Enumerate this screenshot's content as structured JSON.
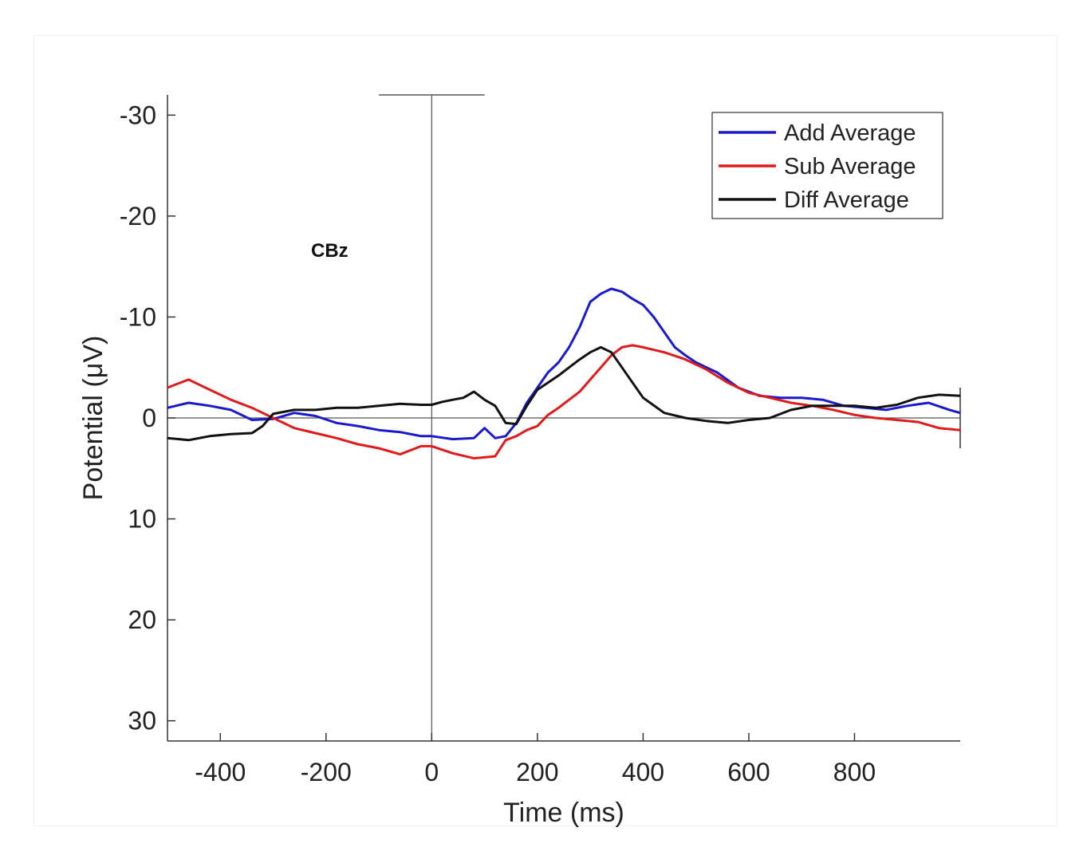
{
  "chart_data": {
    "type": "line",
    "xlabel": "Time (ms)",
    "ylabel": "Potential (μV)",
    "xlim": [
      -500,
      1000
    ],
    "ylim": [
      -32,
      32
    ],
    "y_reversed": true,
    "x_ticks": [
      -400,
      -200,
      0,
      200,
      400,
      600,
      800
    ],
    "y_ticks": [
      -30,
      -20,
      -10,
      0,
      10,
      20,
      30
    ],
    "y_tick_labels": [
      "-30",
      "-20",
      "-10",
      "0",
      "10",
      "20",
      "30"
    ],
    "annotation": "CBz",
    "legend_position": "top-right",
    "reference_lines": {
      "zero_time": 0,
      "zero_potential": 0
    },
    "series": [
      {
        "name": "Add Average",
        "color": "#1a1acc",
        "x": [
          -500,
          -460,
          -420,
          -380,
          -340,
          -300,
          -260,
          -220,
          -180,
          -140,
          -100,
          -60,
          -20,
          0,
          40,
          80,
          100,
          120,
          140,
          160,
          180,
          200,
          220,
          240,
          260,
          280,
          300,
          320,
          340,
          360,
          380,
          400,
          420,
          440,
          460,
          480,
          500,
          540,
          580,
          620,
          660,
          700,
          740,
          780,
          820,
          860,
          900,
          940,
          980,
          1000
        ],
        "y": [
          -1.0,
          -1.5,
          -1.2,
          -0.8,
          0.2,
          0.1,
          -0.5,
          -0.2,
          0.5,
          0.8,
          1.2,
          1.4,
          1.8,
          1.8,
          2.1,
          2.0,
          1.0,
          2.0,
          1.8,
          0.5,
          -1.5,
          -3.0,
          -4.5,
          -5.5,
          -7.0,
          -9.0,
          -11.5,
          -12.3,
          -12.8,
          -12.5,
          -11.8,
          -11.2,
          -10.0,
          -8.5,
          -7.0,
          -6.2,
          -5.5,
          -4.5,
          -3.0,
          -2.2,
          -2.0,
          -2.0,
          -1.8,
          -1.2,
          -1.0,
          -0.8,
          -1.2,
          -1.5,
          -0.8,
          -0.5
        ]
      },
      {
        "name": "Sub Average",
        "color": "#e01a1a",
        "x": [
          -500,
          -460,
          -420,
          -380,
          -340,
          -300,
          -260,
          -220,
          -180,
          -140,
          -100,
          -60,
          -20,
          0,
          40,
          80,
          120,
          140,
          160,
          180,
          200,
          220,
          240,
          260,
          280,
          300,
          320,
          340,
          360,
          380,
          400,
          440,
          480,
          520,
          560,
          600,
          640,
          680,
          720,
          760,
          800,
          840,
          880,
          920,
          960,
          1000
        ],
        "y": [
          -3.0,
          -3.8,
          -2.8,
          -1.8,
          -1.0,
          0.0,
          1.0,
          1.5,
          2.0,
          2.6,
          3.0,
          3.6,
          2.8,
          2.8,
          3.5,
          4.0,
          3.8,
          2.2,
          1.8,
          1.2,
          0.8,
          -0.3,
          -1.0,
          -1.8,
          -2.6,
          -3.8,
          -5.0,
          -6.2,
          -7.0,
          -7.2,
          -7.0,
          -6.5,
          -5.8,
          -4.8,
          -3.5,
          -2.5,
          -2.0,
          -1.5,
          -1.2,
          -0.8,
          -0.3,
          0.0,
          0.2,
          0.4,
          1.0,
          1.2
        ]
      },
      {
        "name": "Diff Average",
        "color": "#111111",
        "x": [
          -500,
          -460,
          -420,
          -380,
          -340,
          -320,
          -300,
          -260,
          -220,
          -180,
          -140,
          -100,
          -60,
          -20,
          0,
          20,
          40,
          60,
          80,
          100,
          120,
          140,
          160,
          180,
          200,
          220,
          240,
          260,
          280,
          300,
          320,
          340,
          360,
          380,
          400,
          440,
          480,
          520,
          560,
          600,
          640,
          680,
          720,
          760,
          800,
          840,
          880,
          920,
          960,
          1000
        ],
        "y": [
          2.0,
          2.2,
          1.8,
          1.6,
          1.5,
          0.8,
          -0.4,
          -0.8,
          -0.8,
          -1.0,
          -1.0,
          -1.2,
          -1.4,
          -1.3,
          -1.3,
          -1.6,
          -1.8,
          -2.0,
          -2.6,
          -1.8,
          -1.2,
          0.5,
          0.6,
          -1.2,
          -2.8,
          -3.5,
          -4.2,
          -5.0,
          -5.8,
          -6.5,
          -7.0,
          -6.5,
          -5.0,
          -3.5,
          -2.0,
          -0.5,
          0.0,
          0.3,
          0.5,
          0.2,
          0.0,
          -0.8,
          -1.2,
          -1.2,
          -1.2,
          -1.0,
          -1.3,
          -2.0,
          -2.3,
          -2.2
        ]
      }
    ]
  }
}
